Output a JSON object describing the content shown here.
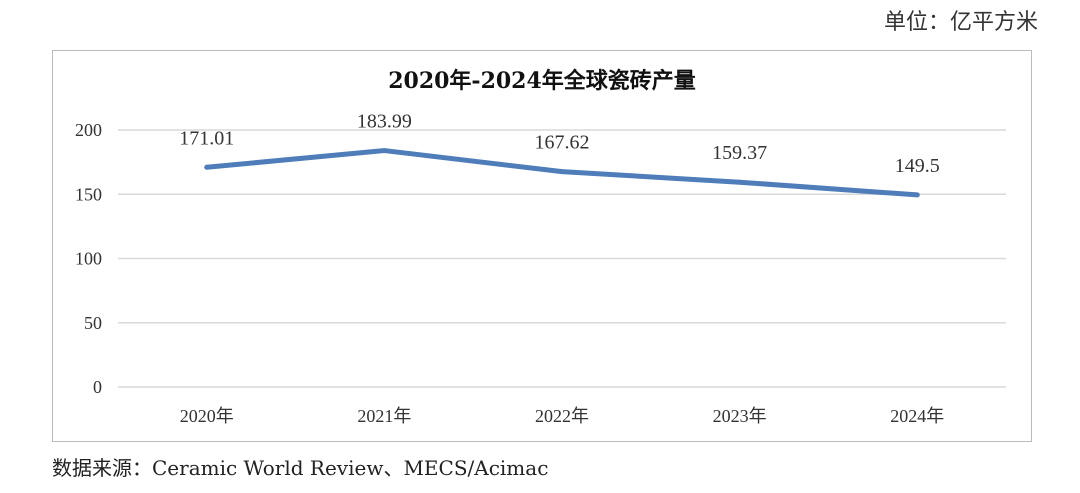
{
  "unit_label": "单位：亿平方米",
  "source_label": "数据来源：Ceramic World Review、MECS/Acimac",
  "chart_data": {
    "type": "line",
    "title": "2020年-2024年全球瓷砖产量",
    "categories": [
      "2020年",
      "2021年",
      "2022年",
      "2023年",
      "2024年"
    ],
    "series": [
      {
        "name": "全球瓷砖产量",
        "values": [
          171.01,
          183.99,
          167.62,
          159.37,
          149.5
        ],
        "value_labels": [
          "171.01",
          "183.99",
          "167.62",
          "159.37",
          "149.5"
        ]
      }
    ],
    "yticks": [
      "0",
      "50",
      "100",
      "150",
      "200"
    ],
    "ylim": [
      0,
      200
    ],
    "grid": true,
    "line_color": "#4E7DB9"
  }
}
